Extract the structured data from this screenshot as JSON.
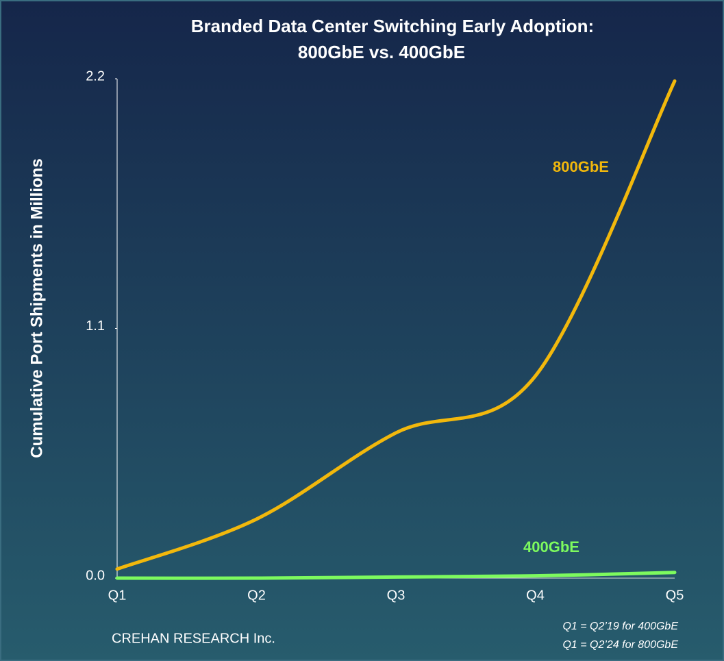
{
  "chart_data": {
    "type": "line",
    "title_lines": [
      "Branded Data Center Switching Early Adoption:",
      "800GbE vs. 400GbE"
    ],
    "y_label": "Cumulative Port Shipments in Millions",
    "categories": [
      "Q1",
      "Q2",
      "Q3",
      "Q4",
      "Q5"
    ],
    "series": [
      {
        "name": "800GbE",
        "color": "#f2b80c",
        "values": [
          0.04,
          0.26,
          0.64,
          0.89,
          2.19
        ]
      },
      {
        "name": "400GbE",
        "color": "#7dfa5e",
        "values": [
          0.0,
          0.0,
          0.005,
          0.01,
          0.025
        ]
      }
    ],
    "ylim": [
      0,
      2.2
    ],
    "yticks": [
      {
        "value": 0,
        "label": "0.0"
      },
      1.1,
      2.2
    ],
    "source": "CREHAN RESEARCH Inc.",
    "notes": [
      "Q1 = Q2’19 for 400GbE",
      "Q1 = Q2’24 for 800GbE"
    ]
  }
}
